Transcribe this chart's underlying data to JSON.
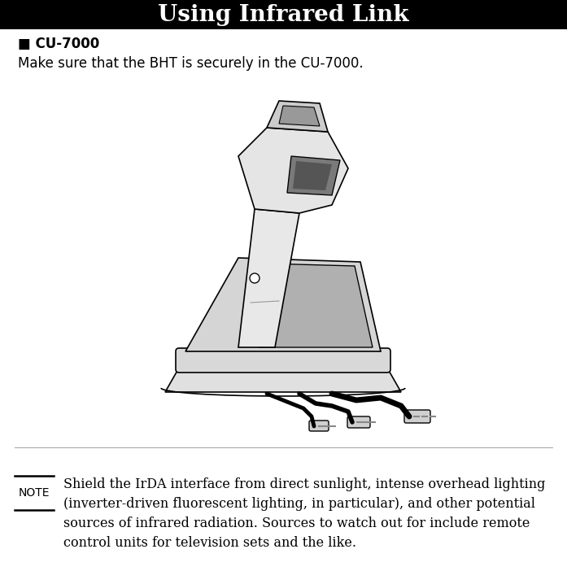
{
  "title": "Using Infrared Link",
  "title_bg": "#000000",
  "title_color": "#ffffff",
  "title_fontsize": 20,
  "body_bg": "#ffffff",
  "section_header": "■ CU-7000",
  "section_header_fontsize": 12,
  "body_text": "Make sure that the BHT is securely in the CU-7000.",
  "body_fontsize": 12,
  "note_label": "NOTE",
  "note_text": "Shield the IrDA interface from direct sunlight, intense overhead lighting\n(inverter-driven fluorescent lighting, in particular), and other potential\nsources of infrared radiation. Sources to watch out for include remote\ncontrol units for television sets and the like.",
  "note_fontsize": 11.5,
  "fig_width": 6.97,
  "fig_height": 7.02
}
